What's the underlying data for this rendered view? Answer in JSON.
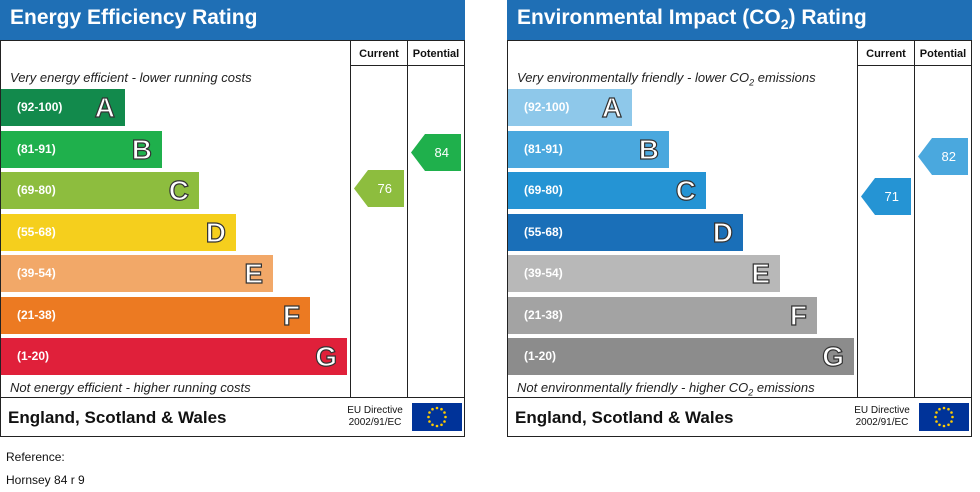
{
  "chart_data": [
    {
      "type": "bar",
      "title": "Energy Efficiency Rating",
      "columns": [
        "Current",
        "Potential"
      ],
      "top_note": "Very energy efficient - lower running costs",
      "bottom_note": "Not energy efficient - higher running costs",
      "categories": [
        "A",
        "B",
        "C",
        "D",
        "E",
        "F",
        "G"
      ],
      "ranges": [
        "(92-100)",
        "(81-91)",
        "(69-80)",
        "(55-68)",
        "(39-54)",
        "(21-38)",
        "(1-20)"
      ],
      "colors": [
        "#128a4c",
        "#1fb04c",
        "#8dbd3e",
        "#f5cf1d",
        "#f2a868",
        "#ec7a22",
        "#e0203a"
      ],
      "current": 76,
      "potential": 84,
      "current_color": "#8dbd3e",
      "potential_color": "#1fb04c",
      "footer": "England, Scotland & Wales",
      "directive_line1": "EU Directive",
      "directive_line2": "2002/91/EC"
    },
    {
      "type": "bar",
      "title_prefix": "Environmental Impact (CO",
      "title_sub": "2",
      "title_suffix": ") Rating",
      "columns": [
        "Current",
        "Potential"
      ],
      "top_note_prefix": "Very environmentally friendly - lower CO",
      "top_note_sub": "2",
      "top_note_suffix": " emissions",
      "bottom_note_prefix": "Not environmentally friendly - higher CO",
      "bottom_note_sub": "2",
      "bottom_note_suffix": " emissions",
      "categories": [
        "A",
        "B",
        "C",
        "D",
        "E",
        "F",
        "G"
      ],
      "ranges": [
        "(92-100)",
        "(81-91)",
        "(69-80)",
        "(55-68)",
        "(39-54)",
        "(21-38)",
        "(1-20)"
      ],
      "colors": [
        "#8ec8ea",
        "#4aa8de",
        "#2594d4",
        "#1a6fb8",
        "#b8b8b8",
        "#a3a3a3",
        "#8c8c8c"
      ],
      "current": 71,
      "potential": 82,
      "current_color": "#2594d4",
      "potential_color": "#4aa8de",
      "footer": "England, Scotland & Wales",
      "directive_line1": "EU Directive",
      "directive_line2": "2002/91/EC"
    }
  ],
  "reference": {
    "line1": "Reference:",
    "line2": "Hornsey 84 r 9"
  }
}
